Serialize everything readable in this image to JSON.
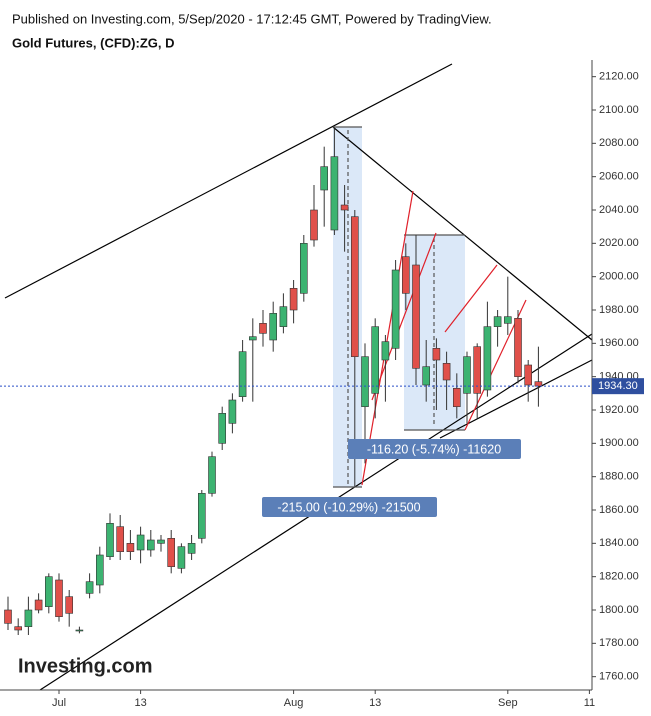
{
  "header": {
    "published": "Published on Investing.com, 5/Sep/2020 - 17:12:45 GMT, Powered by TradingView.",
    "logo": "Investing.com"
  },
  "chart_data": {
    "type": "candlestick",
    "title": "Gold Futures, (CFD):ZG, D",
    "categories": [
      null,
      null,
      null,
      null,
      null,
      "Jul",
      null,
      null,
      null,
      null,
      null,
      null,
      null,
      "13",
      null,
      null,
      null,
      null,
      null,
      null,
      null,
      null,
      null,
      null,
      null,
      null,
      null,
      null,
      "Aug",
      null,
      null,
      null,
      null,
      null,
      null,
      null,
      "13",
      null,
      null,
      null,
      null,
      null,
      null,
      null,
      null,
      null,
      null,
      null,
      null,
      "Sep",
      null,
      null,
      null,
      null,
      null,
      null,
      null,
      "11"
    ],
    "open": [
      1800,
      1790,
      1790,
      1806,
      1802,
      1818,
      1808,
      1788,
      1810,
      1815,
      1832,
      1850,
      1840,
      1836,
      1836,
      1840,
      1843,
      1825,
      1834,
      1843,
      1870,
      1900,
      1912,
      1928,
      1962,
      1972,
      1962,
      1970,
      1993,
      1990,
      2040,
      2052,
      2028,
      2043,
      2036,
      1922,
      1930,
      1950,
      1957,
      2012,
      2007,
      1935,
      1957,
      1948,
      1933,
      1930,
      1958,
      1932,
      1970,
      1972,
      1975,
      1947,
      1937,
      null,
      null,
      null,
      null,
      null
    ],
    "high": [
      1808,
      1795,
      1808,
      1810,
      1822,
      1822,
      1812,
      1790,
      1822,
      1838,
      1858,
      1857,
      1848,
      1850,
      1848,
      1845,
      1848,
      1840,
      1845,
      1872,
      1895,
      1922,
      1930,
      1962,
      1975,
      1980,
      1985,
      1990,
      1998,
      2025,
      2055,
      2078,
      2089,
      2055,
      2040,
      1960,
      1975,
      1965,
      2010,
      2020,
      2025,
      1962,
      1963,
      1955,
      1942,
      1955,
      1960,
      1985,
      1980,
      2000,
      1980,
      1950,
      1958,
      null,
      null,
      null,
      null,
      null
    ],
    "low": [
      1788,
      1785,
      1785,
      1798,
      1798,
      1793,
      1790,
      1786,
      1807,
      1810,
      1830,
      1830,
      1830,
      1828,
      1832,
      1835,
      1822,
      1822,
      1830,
      1840,
      1868,
      1896,
      1906,
      1925,
      1925,
      1958,
      1955,
      1966,
      1972,
      1985,
      2018,
      2030,
      2025,
      2015,
      1874,
      1888,
      1915,
      1925,
      1950,
      1980,
      1935,
      1925,
      1920,
      1920,
      1915,
      1912,
      1915,
      1928,
      1958,
      1965,
      1936,
      1925,
      1922,
      null,
      null,
      null,
      null,
      null
    ],
    "close": [
      1792,
      1788,
      1800,
      1800,
      1820,
      1796,
      1798,
      1788,
      1817,
      1833,
      1852,
      1835,
      1835,
      1845,
      1842,
      1842,
      1826,
      1838,
      1840,
      1870,
      1892,
      1918,
      1926,
      1955,
      1964,
      1966,
      1978,
      1982,
      1980,
      2020,
      2022,
      2066,
      2072,
      2040,
      1952,
      1952,
      1970,
      1961,
      2004,
      1990,
      1945,
      1946,
      1950,
      1938,
      1922,
      1952,
      1930,
      1970,
      1976,
      1976,
      1940,
      1935,
      1934.3,
      null,
      null,
      null,
      null,
      null
    ],
    "up_color": "#3cb371",
    "down_color": "#e0504a",
    "last_price": {
      "value": 1934.3,
      "label": "1934.30"
    },
    "ylim": [
      1752,
      2130
    ],
    "yticks": [
      {
        "value": 1760,
        "label": "1760.00"
      },
      {
        "value": 1780,
        "label": "1780.00"
      },
      {
        "value": 1800,
        "label": "1800.00"
      },
      {
        "value": 1820,
        "label": "1820.00"
      },
      {
        "value": 1840,
        "label": "1840.00"
      },
      {
        "value": 1860,
        "label": "1860.00"
      },
      {
        "value": 1880,
        "label": "1880.00"
      },
      {
        "value": 1900,
        "label": "1900.00"
      },
      {
        "value": 1920,
        "label": "1920.00"
      },
      {
        "value": 1940,
        "label": "1940.00"
      },
      {
        "value": 1960,
        "label": "1960.00"
      },
      {
        "value": 1980,
        "label": "1980.00"
      },
      {
        "value": 2000,
        "label": "2000.00"
      },
      {
        "value": 2020,
        "label": "2020.00"
      },
      {
        "value": 2040,
        "label": "2040.00"
      },
      {
        "value": 2060,
        "label": "2060.00"
      },
      {
        "value": 2080,
        "label": "2080.00"
      },
      {
        "value": 2100,
        "label": "2100.00"
      },
      {
        "value": 2120,
        "label": "2120.00"
      }
    ],
    "annotations": [
      "-215.00 (-10.29%) -21500",
      "-116.20 (-5.74%) -11620"
    ]
  }
}
